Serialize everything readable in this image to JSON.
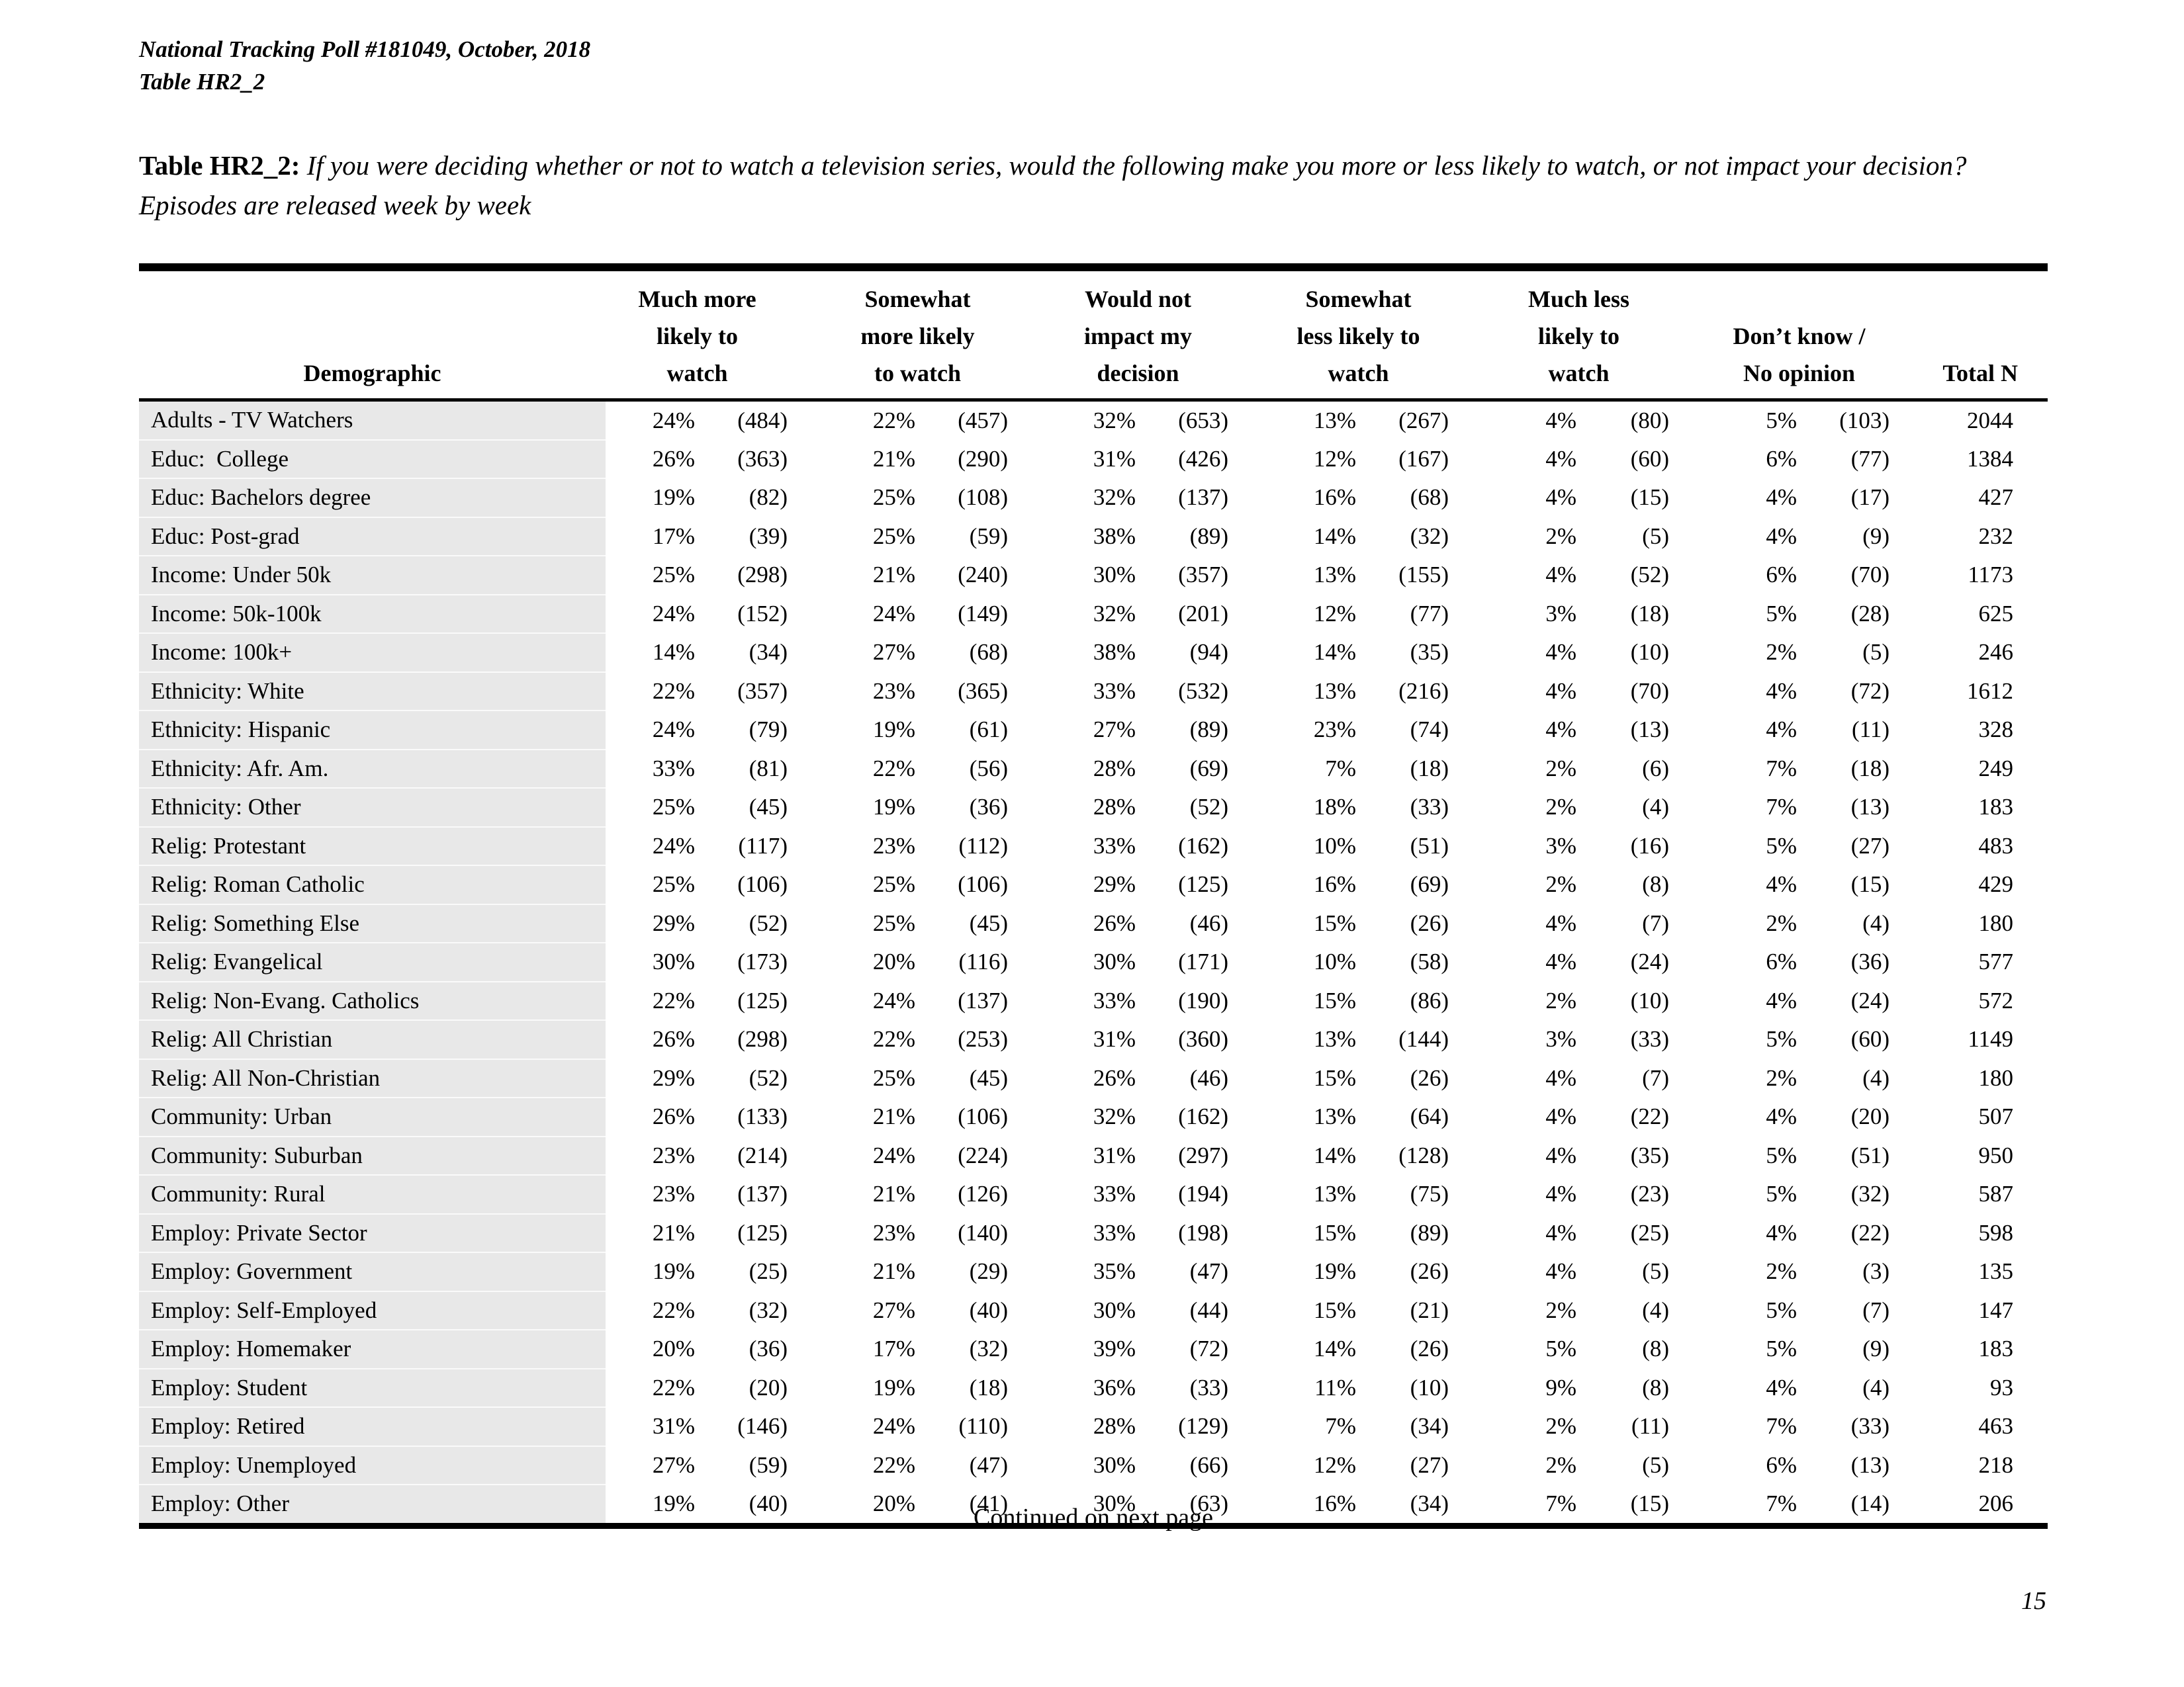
{
  "page": {
    "poll_line": "National Tracking Poll #181049, October, 2018",
    "table_line": "Table HR2_2",
    "title_label": "Table HR2_2:",
    "title_question": "If you were deciding whether or not to watch a television series, would the following make you more or less likely to watch, or not impact your decision?",
    "subtitle": "Episodes are released week by week",
    "continued_note": "Continued on next page",
    "page_number": "15"
  },
  "colors": {
    "text": "#000000",
    "row_label_bg": "#e8e8e8",
    "rule": "#000000"
  },
  "table": {
    "demographic_header": "Demographic",
    "total_header": "Total N",
    "group_headers": [
      [
        "Much more",
        "likely to",
        "watch"
      ],
      [
        "Somewhat",
        "more likely",
        "to watch"
      ],
      [
        "Would not",
        "impact my",
        "decision"
      ],
      [
        "Somewhat",
        "less likely to",
        "watch"
      ],
      [
        "Much less",
        "likely to",
        "watch"
      ],
      [
        "Don’t know /",
        "No opinion"
      ]
    ],
    "rows": [
      {
        "label": "Adults - TV Watchers",
        "values": [
          "24%",
          "(484)",
          "22%",
          "(457)",
          "32%",
          "(653)",
          "13%",
          "(267)",
          "4%",
          "(80)",
          "5%",
          "(103)"
        ],
        "total": "2044"
      },
      {
        "label": "Educ:  College",
        "values": [
          "26%",
          "(363)",
          "21%",
          "(290)",
          "31%",
          "(426)",
          "12%",
          "(167)",
          "4%",
          "(60)",
          "6%",
          "(77)"
        ],
        "total": "1384"
      },
      {
        "label": "Educ: Bachelors degree",
        "values": [
          "19%",
          "(82)",
          "25%",
          "(108)",
          "32%",
          "(137)",
          "16%",
          "(68)",
          "4%",
          "(15)",
          "4%",
          "(17)"
        ],
        "total": "427"
      },
      {
        "label": "Educ: Post-grad",
        "values": [
          "17%",
          "(39)",
          "25%",
          "(59)",
          "38%",
          "(89)",
          "14%",
          "(32)",
          "2%",
          "(5)",
          "4%",
          "(9)"
        ],
        "total": "232"
      },
      {
        "label": "Income: Under 50k",
        "values": [
          "25%",
          "(298)",
          "21%",
          "(240)",
          "30%",
          "(357)",
          "13%",
          "(155)",
          "4%",
          "(52)",
          "6%",
          "(70)"
        ],
        "total": "1173"
      },
      {
        "label": "Income: 50k-100k",
        "values": [
          "24%",
          "(152)",
          "24%",
          "(149)",
          "32%",
          "(201)",
          "12%",
          "(77)",
          "3%",
          "(18)",
          "5%",
          "(28)"
        ],
        "total": "625"
      },
      {
        "label": "Income: 100k+",
        "values": [
          "14%",
          "(34)",
          "27%",
          "(68)",
          "38%",
          "(94)",
          "14%",
          "(35)",
          "4%",
          "(10)",
          "2%",
          "(5)"
        ],
        "total": "246"
      },
      {
        "label": "Ethnicity: White",
        "values": [
          "22%",
          "(357)",
          "23%",
          "(365)",
          "33%",
          "(532)",
          "13%",
          "(216)",
          "4%",
          "(70)",
          "4%",
          "(72)"
        ],
        "total": "1612"
      },
      {
        "label": "Ethnicity: Hispanic",
        "values": [
          "24%",
          "(79)",
          "19%",
          "(61)",
          "27%",
          "(89)",
          "23%",
          "(74)",
          "4%",
          "(13)",
          "4%",
          "(11)"
        ],
        "total": "328"
      },
      {
        "label": "Ethnicity: Afr. Am.",
        "values": [
          "33%",
          "(81)",
          "22%",
          "(56)",
          "28%",
          "(69)",
          "7%",
          "(18)",
          "2%",
          "(6)",
          "7%",
          "(18)"
        ],
        "total": "249"
      },
      {
        "label": "Ethnicity: Other",
        "values": [
          "25%",
          "(45)",
          "19%",
          "(36)",
          "28%",
          "(52)",
          "18%",
          "(33)",
          "2%",
          "(4)",
          "7%",
          "(13)"
        ],
        "total": "183"
      },
      {
        "label": "Relig: Protestant",
        "values": [
          "24%",
          "(117)",
          "23%",
          "(112)",
          "33%",
          "(162)",
          "10%",
          "(51)",
          "3%",
          "(16)",
          "5%",
          "(27)"
        ],
        "total": "483"
      },
      {
        "label": "Relig: Roman Catholic",
        "values": [
          "25%",
          "(106)",
          "25%",
          "(106)",
          "29%",
          "(125)",
          "16%",
          "(69)",
          "2%",
          "(8)",
          "4%",
          "(15)"
        ],
        "total": "429"
      },
      {
        "label": "Relig: Something Else",
        "values": [
          "29%",
          "(52)",
          "25%",
          "(45)",
          "26%",
          "(46)",
          "15%",
          "(26)",
          "4%",
          "(7)",
          "2%",
          "(4)"
        ],
        "total": "180"
      },
      {
        "label": "Relig: Evangelical",
        "values": [
          "30%",
          "(173)",
          "20%",
          "(116)",
          "30%",
          "(171)",
          "10%",
          "(58)",
          "4%",
          "(24)",
          "6%",
          "(36)"
        ],
        "total": "577"
      },
      {
        "label": "Relig: Non-Evang. Catholics",
        "values": [
          "22%",
          "(125)",
          "24%",
          "(137)",
          "33%",
          "(190)",
          "15%",
          "(86)",
          "2%",
          "(10)",
          "4%",
          "(24)"
        ],
        "total": "572"
      },
      {
        "label": "Relig: All Christian",
        "values": [
          "26%",
          "(298)",
          "22%",
          "(253)",
          "31%",
          "(360)",
          "13%",
          "(144)",
          "3%",
          "(33)",
          "5%",
          "(60)"
        ],
        "total": "1149"
      },
      {
        "label": "Relig: All Non-Christian",
        "values": [
          "29%",
          "(52)",
          "25%",
          "(45)",
          "26%",
          "(46)",
          "15%",
          "(26)",
          "4%",
          "(7)",
          "2%",
          "(4)"
        ],
        "total": "180"
      },
      {
        "label": "Community: Urban",
        "values": [
          "26%",
          "(133)",
          "21%",
          "(106)",
          "32%",
          "(162)",
          "13%",
          "(64)",
          "4%",
          "(22)",
          "4%",
          "(20)"
        ],
        "total": "507"
      },
      {
        "label": "Community: Suburban",
        "values": [
          "23%",
          "(214)",
          "24%",
          "(224)",
          "31%",
          "(297)",
          "14%",
          "(128)",
          "4%",
          "(35)",
          "5%",
          "(51)"
        ],
        "total": "950"
      },
      {
        "label": "Community: Rural",
        "values": [
          "23%",
          "(137)",
          "21%",
          "(126)",
          "33%",
          "(194)",
          "13%",
          "(75)",
          "4%",
          "(23)",
          "5%",
          "(32)"
        ],
        "total": "587"
      },
      {
        "label": "Employ: Private Sector",
        "values": [
          "21%",
          "(125)",
          "23%",
          "(140)",
          "33%",
          "(198)",
          "15%",
          "(89)",
          "4%",
          "(25)",
          "4%",
          "(22)"
        ],
        "total": "598"
      },
      {
        "label": "Employ: Government",
        "values": [
          "19%",
          "(25)",
          "21%",
          "(29)",
          "35%",
          "(47)",
          "19%",
          "(26)",
          "4%",
          "(5)",
          "2%",
          "(3)"
        ],
        "total": "135"
      },
      {
        "label": "Employ: Self-Employed",
        "values": [
          "22%",
          "(32)",
          "27%",
          "(40)",
          "30%",
          "(44)",
          "15%",
          "(21)",
          "2%",
          "(4)",
          "5%",
          "(7)"
        ],
        "total": "147"
      },
      {
        "label": "Employ: Homemaker",
        "values": [
          "20%",
          "(36)",
          "17%",
          "(32)",
          "39%",
          "(72)",
          "14%",
          "(26)",
          "5%",
          "(8)",
          "5%",
          "(9)"
        ],
        "total": "183"
      },
      {
        "label": "Employ: Student",
        "values": [
          "22%",
          "(20)",
          "19%",
          "(18)",
          "36%",
          "(33)",
          "11%",
          "(10)",
          "9%",
          "(8)",
          "4%",
          "(4)"
        ],
        "total": "93"
      },
      {
        "label": "Employ: Retired",
        "values": [
          "31%",
          "(146)",
          "24%",
          "(110)",
          "28%",
          "(129)",
          "7%",
          "(34)",
          "2%",
          "(11)",
          "7%",
          "(33)"
        ],
        "total": "463"
      },
      {
        "label": "Employ: Unemployed",
        "values": [
          "27%",
          "(59)",
          "22%",
          "(47)",
          "30%",
          "(66)",
          "12%",
          "(27)",
          "2%",
          "(5)",
          "6%",
          "(13)"
        ],
        "total": "218"
      },
      {
        "label": "Employ: Other",
        "values": [
          "19%",
          "(40)",
          "20%",
          "(41)",
          "30%",
          "(63)",
          "16%",
          "(34)",
          "7%",
          "(15)",
          "7%",
          "(14)"
        ],
        "total": "206"
      }
    ]
  }
}
